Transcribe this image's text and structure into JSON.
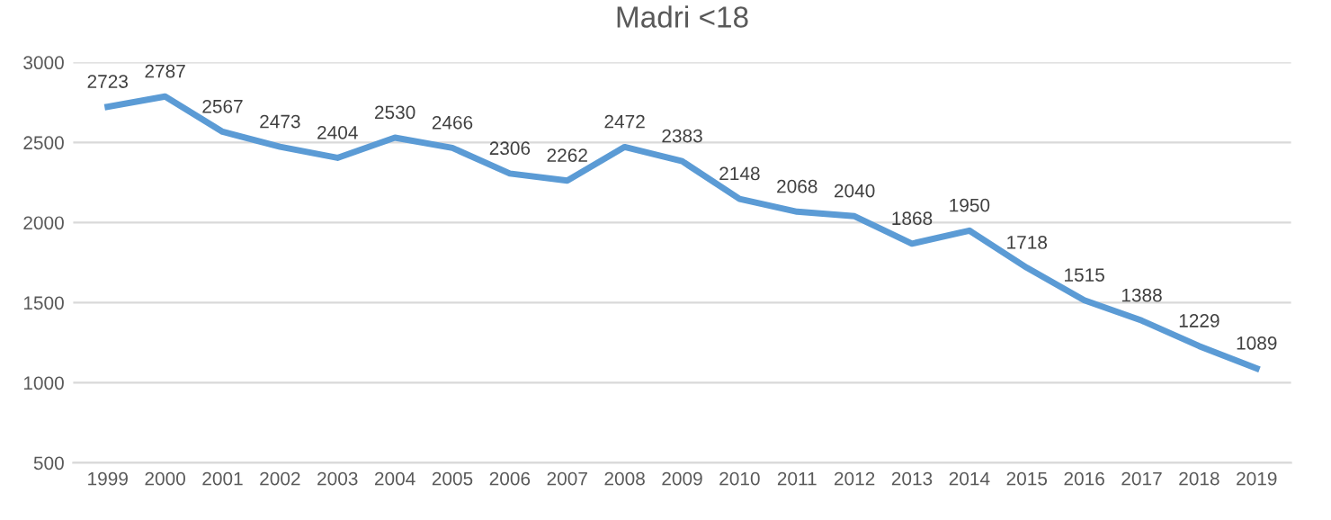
{
  "chart_data": {
    "type": "line",
    "title": "Madri <18",
    "categories": [
      "1999",
      "2000",
      "2001",
      "2002",
      "2003",
      "2004",
      "2005",
      "2006",
      "2007",
      "2008",
      "2009",
      "2010",
      "2011",
      "2012",
      "2013",
      "2014",
      "2015",
      "2016",
      "2017",
      "2018",
      "2019"
    ],
    "values": [
      2723,
      2787,
      2567,
      2473,
      2404,
      2530,
      2466,
      2306,
      2262,
      2472,
      2383,
      2148,
      2068,
      2040,
      1868,
      1950,
      1718,
      1515,
      1388,
      1229,
      1089
    ],
    "color": "#5b9bd5",
    "ylim": [
      500,
      3000
    ],
    "yticks": [
      500,
      1000,
      1500,
      2000,
      2500,
      3000
    ],
    "grid": "y",
    "data_labels": true,
    "marker": "none",
    "line_style": "solid"
  }
}
